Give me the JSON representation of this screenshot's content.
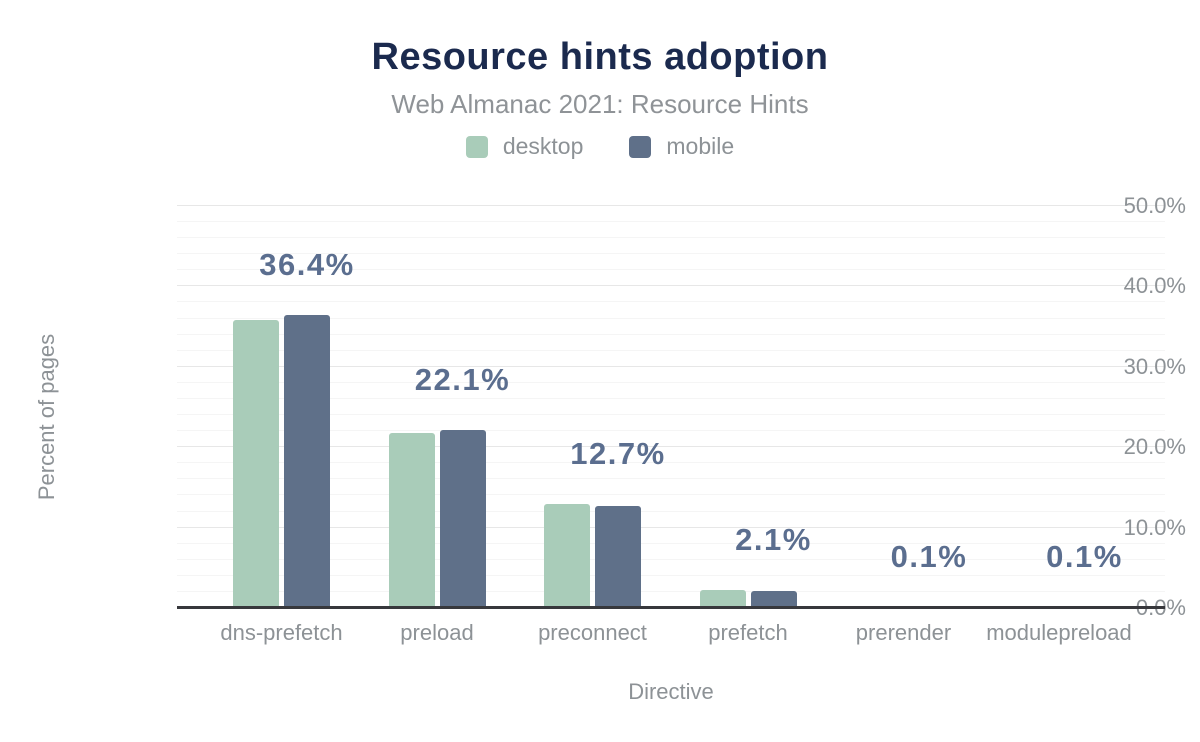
{
  "header": {
    "title": "Resource hints adoption",
    "subtitle": "Web Almanac 2021: Resource Hints"
  },
  "chart_data": {
    "type": "bar",
    "title": "Resource hints adoption",
    "subtitle": "Web Almanac 2021: Resource Hints",
    "xlabel": "Directive",
    "ylabel": "Percent of pages",
    "categories": [
      "dns-prefetch",
      "preload",
      "preconnect",
      "prefetch",
      "prerender",
      "modulepreload"
    ],
    "series": [
      {
        "name": "desktop",
        "color": "#a9ccb9",
        "values": [
          35.8,
          21.8,
          12.9,
          2.3,
          0.1,
          0.1
        ]
      },
      {
        "name": "mobile",
        "color": "#5f7089",
        "values": [
          36.4,
          22.1,
          12.7,
          2.1,
          0.1,
          0.1
        ]
      }
    ],
    "data_labels": [
      "36.4%",
      "22.1%",
      "12.7%",
      "2.1%",
      "0.1%",
      "0.1%"
    ],
    "ylim": [
      0,
      50
    ],
    "yticks": [
      {
        "value": 0,
        "label": "0.0%"
      },
      {
        "value": 10,
        "label": "10.0%"
      },
      {
        "value": 20,
        "label": "20.0%"
      },
      {
        "value": 30,
        "label": "30.0%"
      },
      {
        "value": 40,
        "label": "40.0%"
      },
      {
        "value": 50,
        "label": "50.0%"
      }
    ],
    "grid": {
      "major_step": 10,
      "minor_step": 2,
      "minor_on": true
    },
    "legend_position": "top",
    "colors": {
      "title_text": "#1b2a4e",
      "muted_text": "#8d9296",
      "value_label_text": "#5b6e8f",
      "axis_line": "#37383c",
      "major_grid": "#e7e7e7",
      "minor_grid": "#f5f5f5",
      "background": "#ffffff"
    }
  }
}
